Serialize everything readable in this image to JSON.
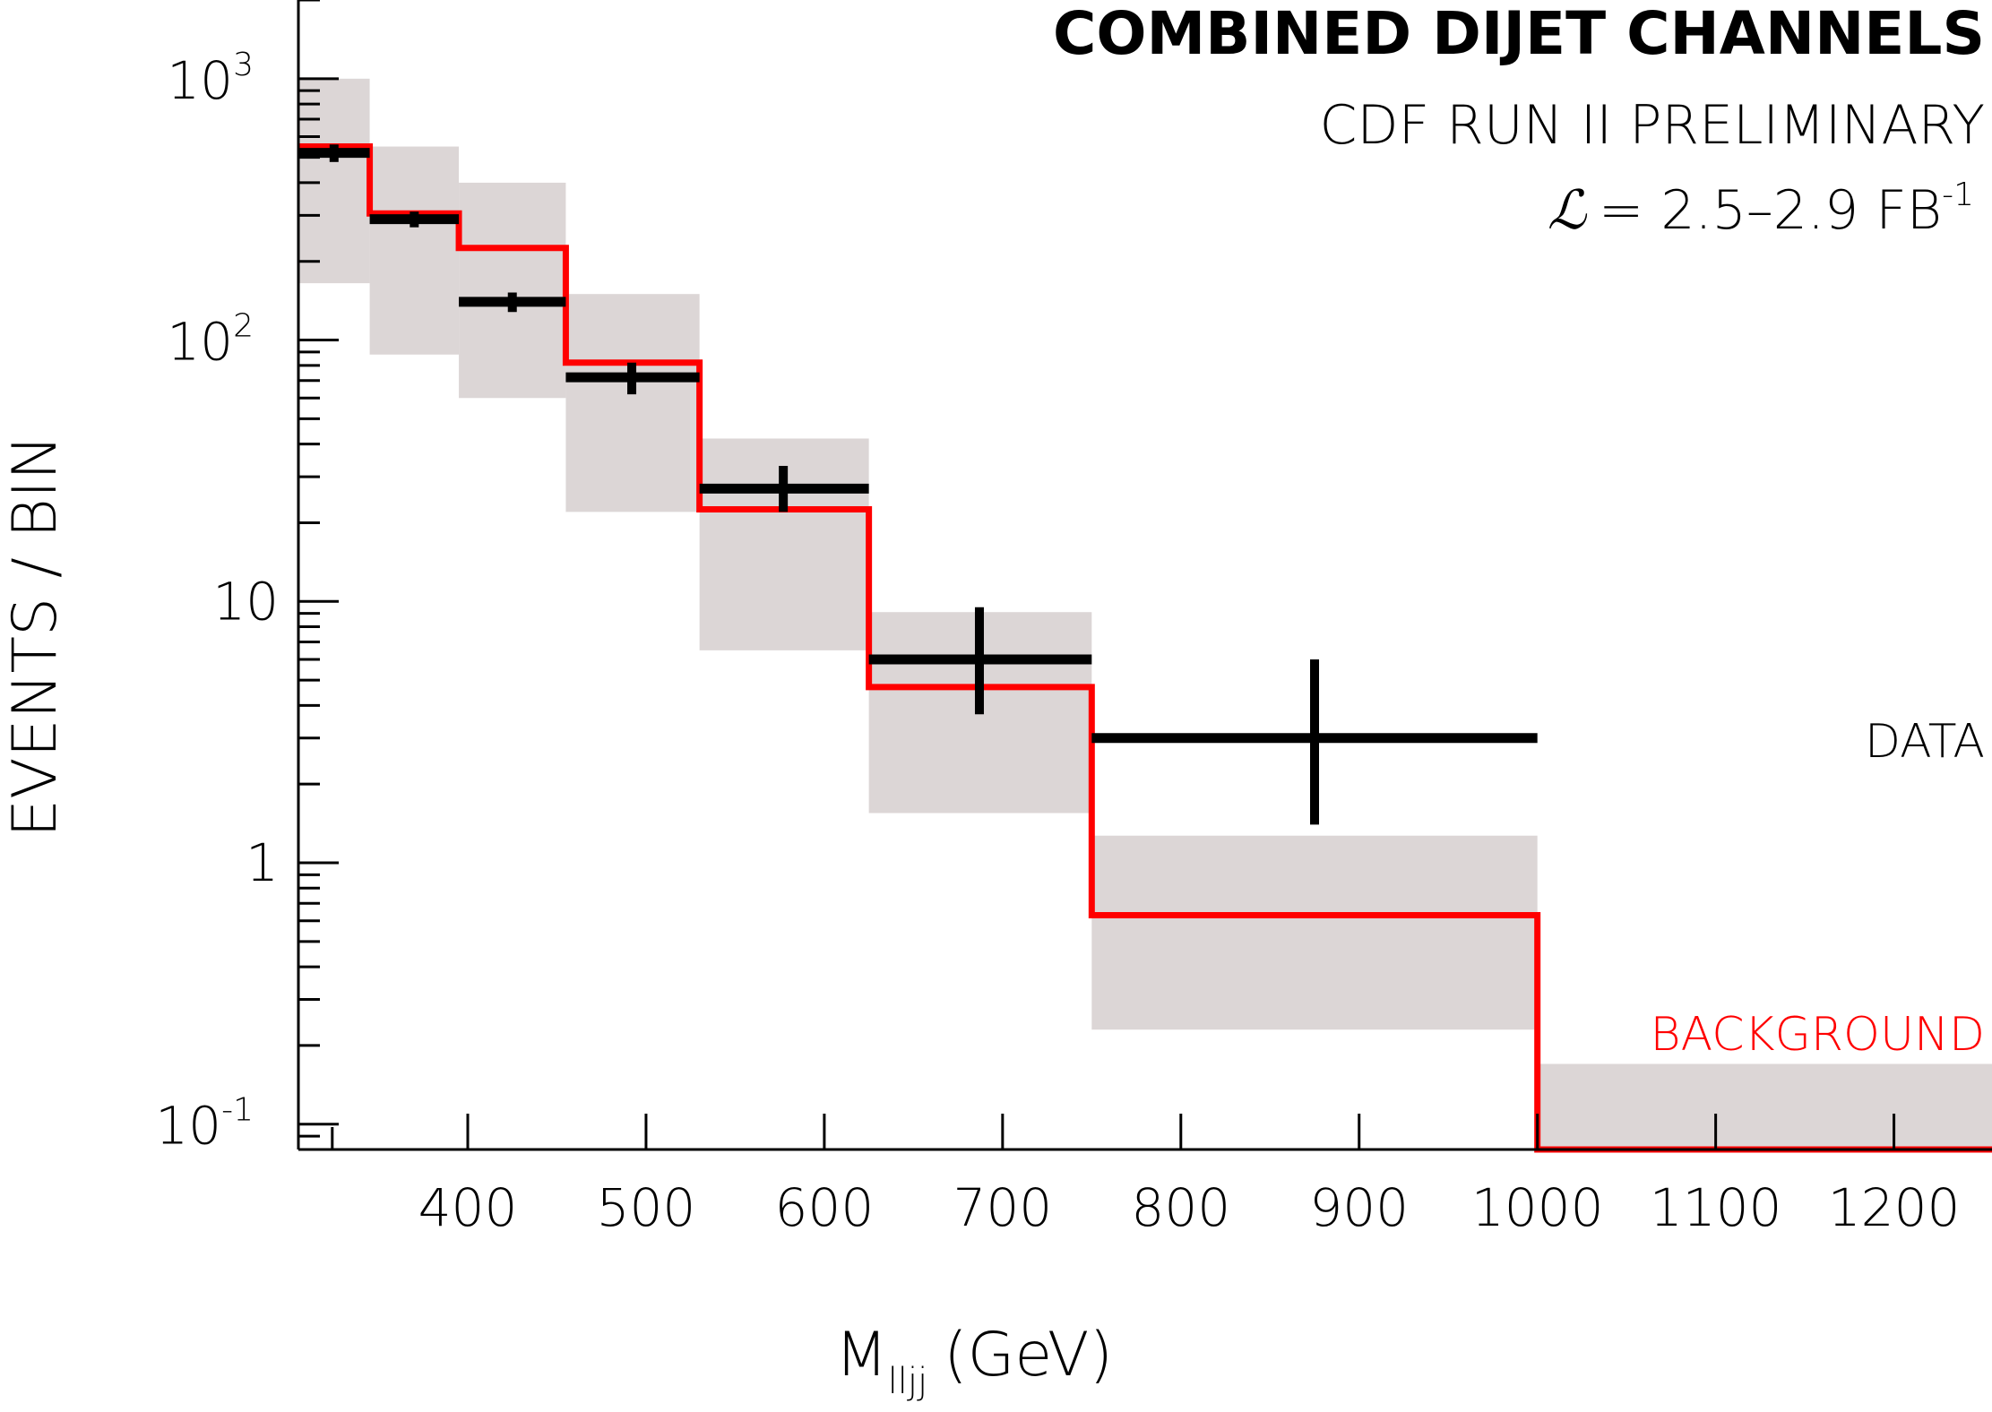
{
  "chart_data": {
    "type": "bar",
    "title": "COMBINED DIJET CHANNELS",
    "subtitle": "CDF RUN II PRELIMINARY",
    "luminosity": {
      "symbol": "ℒ",
      "text": "= 2.5–2.9 FB",
      "superscript": "-1"
    },
    "xlabel": {
      "main": "M",
      "subscript": "lljj",
      "unit": "(GeV)"
    },
    "ylabel": "EVENTS / BIN",
    "xlim": [
      305,
      1255
    ],
    "ylim": [
      0.08,
      2000
    ],
    "yscale": "log",
    "x_ticks": [
      400,
      500,
      600,
      700,
      800,
      900,
      1000,
      1100,
      1200
    ],
    "y_major_ticks": [
      {
        "value": 0.1,
        "base": "10",
        "exp": "-1"
      },
      {
        "value": 1,
        "base": "1",
        "exp": ""
      },
      {
        "value": 10,
        "base": "10",
        "exp": ""
      },
      {
        "value": 100,
        "base": "10",
        "exp": "2"
      },
      {
        "value": 1000,
        "base": "10",
        "exp": "3"
      }
    ],
    "bin_edges": [
      305,
      345,
      395,
      455,
      530,
      625,
      750,
      1000,
      1255
    ],
    "series": [
      {
        "name": "DATA",
        "color": "#000000",
        "points": [
          {
            "x_low": 305,
            "x_high": 345,
            "x": 325,
            "y": 520,
            "err_low": 480,
            "err_high": 560
          },
          {
            "x_low": 345,
            "x_high": 395,
            "x": 370,
            "y": 290,
            "err_low": 270,
            "err_high": 310
          },
          {
            "x_low": 395,
            "x_high": 455,
            "x": 425,
            "y": 140,
            "err_low": 128,
            "err_high": 152
          },
          {
            "x_low": 455,
            "x_high": 530,
            "x": 492,
            "y": 72,
            "err_low": 62,
            "err_high": 82
          },
          {
            "x_low": 530,
            "x_high": 625,
            "x": 577,
            "y": 27,
            "err_low": 22,
            "err_high": 33
          },
          {
            "x_low": 625,
            "x_high": 750,
            "x": 687,
            "y": 6,
            "err_low": 3.7,
            "err_high": 9.5
          },
          {
            "x_low": 750,
            "x_high": 1000,
            "x": 875,
            "y": 3,
            "err_low": 1.4,
            "err_high": 6
          }
        ]
      },
      {
        "name": "BACKGROUND",
        "color": "#ff0000",
        "bins": [
          {
            "x_low": 305,
            "x_high": 345,
            "value": 550,
            "band_low": 165,
            "band_high": 1000
          },
          {
            "x_low": 345,
            "x_high": 395,
            "value": 305,
            "band_low": 88,
            "band_high": 550
          },
          {
            "x_low": 395,
            "x_high": 455,
            "value": 225,
            "band_low": 60,
            "band_high": 400
          },
          {
            "x_low": 455,
            "x_high": 530,
            "value": 82,
            "band_low": 22,
            "band_high": 150
          },
          {
            "x_low": 530,
            "x_high": 625,
            "value": 22.5,
            "band_low": 6.5,
            "band_high": 42
          },
          {
            "x_low": 625,
            "x_high": 750,
            "value": 4.7,
            "band_low": 1.55,
            "band_high": 9.1
          },
          {
            "x_low": 750,
            "x_high": 1000,
            "value": 0.63,
            "band_low": 0.23,
            "band_high": 1.27
          },
          {
            "x_low": 1000,
            "x_high": 1255,
            "value": 0.08,
            "band_low": 0.08,
            "band_high": 0.17
          }
        ]
      }
    ],
    "legend": [
      {
        "label": "DATA",
        "color": "#000000"
      },
      {
        "label": "BACKGROUND",
        "color": "#ff0000"
      }
    ],
    "legend_position": "right",
    "band_color": "#dcd6d6",
    "grid": false
  }
}
